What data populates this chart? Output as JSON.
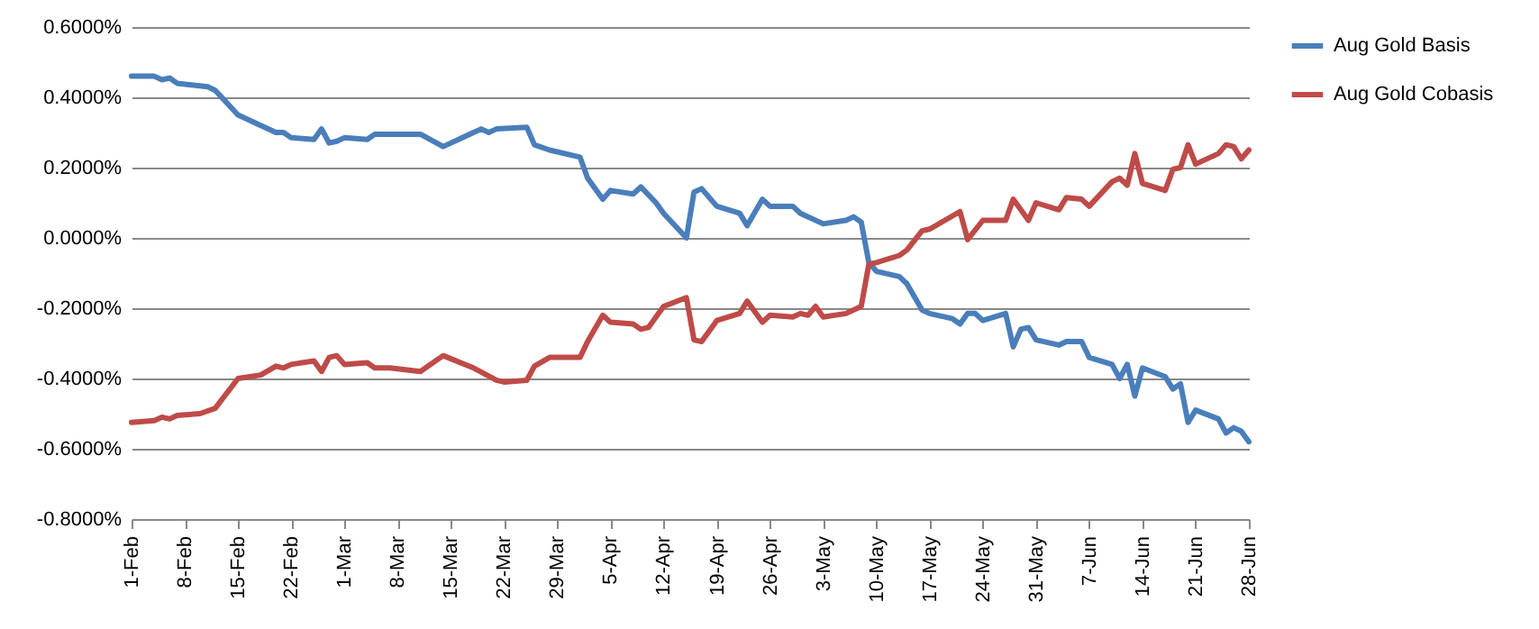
{
  "chart_data": {
    "type": "line",
    "legend": "right",
    "grid": "y",
    "line_style": "solid",
    "xlim": [
      "--02-01",
      "--06-28"
    ],
    "xticks": [
      {
        "value": "--02-01",
        "label": "1-Feb"
      },
      {
        "value": "--02-08",
        "label": "8-Feb"
      },
      {
        "value": "--02-15",
        "label": "15-Feb"
      },
      {
        "value": "--02-22",
        "label": "22-Feb"
      },
      {
        "value": "--03-01",
        "label": "1-Mar"
      },
      {
        "value": "--03-08",
        "label": "8-Mar"
      },
      {
        "value": "--03-15",
        "label": "15-Mar"
      },
      {
        "value": "--03-22",
        "label": "22-Mar"
      },
      {
        "value": "--03-29",
        "label": "29-Mar"
      },
      {
        "value": "--04-05",
        "label": "5-Apr"
      },
      {
        "value": "--04-12",
        "label": "12-Apr"
      },
      {
        "value": "--04-19",
        "label": "19-Apr"
      },
      {
        "value": "--04-26",
        "label": "26-Apr"
      },
      {
        "value": "--05-03",
        "label": "3-May"
      },
      {
        "value": "--05-10",
        "label": "10-May"
      },
      {
        "value": "--05-17",
        "label": "17-May"
      },
      {
        "value": "--05-24",
        "label": "24-May"
      },
      {
        "value": "--05-31",
        "label": "31-May"
      },
      {
        "value": "--06-07",
        "label": "7-Jun"
      },
      {
        "value": "--06-14",
        "label": "14-Jun"
      },
      {
        "value": "--06-21",
        "label": "21-Jun"
      },
      {
        "value": "--06-28",
        "label": "28-Jun"
      }
    ],
    "ylim": [
      -0.8,
      0.6
    ],
    "yticks": [
      {
        "value": -0.8,
        "label": "-0.8000%"
      },
      {
        "value": -0.6,
        "label": "-0.6000%"
      },
      {
        "value": -0.4,
        "label": "-0.4000%"
      },
      {
        "value": -0.2,
        "label": "-0.2000%"
      },
      {
        "value": 0,
        "label": "0.0000%"
      },
      {
        "value": 0.2,
        "label": "0.2000%"
      },
      {
        "value": 0.4,
        "label": "0.4000%"
      },
      {
        "value": 0.6,
        "label": "0.6000%"
      }
    ],
    "series": [
      {
        "name": "Aug Gold  Basis",
        "color": "#4a7ebb",
        "x": [
          "--02-01",
          "--02-04",
          "--02-05",
          "--02-06",
          "--02-07",
          "--02-11",
          "--02-12",
          "--02-15",
          "--02-18",
          "--02-20",
          "--02-21",
          "--02-22",
          "--02-25",
          "--02-26",
          "--02-27",
          "--02-28",
          "--03-01",
          "--03-04",
          "--03-05",
          "--03-11",
          "--03-14",
          "--03-18",
          "--03-19",
          "--03-20",
          "--03-21",
          "--03-25",
          "--03-26",
          "--03-28",
          "--04-01",
          "--04-02",
          "--04-04",
          "--04-05",
          "--04-08",
          "--04-09",
          "--04-11",
          "--04-12",
          "--04-15",
          "--04-16",
          "--04-17",
          "--04-19",
          "--04-22",
          "--04-23",
          "--04-25",
          "--04-26",
          "--04-29",
          "--04-30",
          "--05-03",
          "--05-06",
          "--05-07",
          "--05-08",
          "--05-09",
          "--05-10",
          "--05-13",
          "--05-14",
          "--05-16",
          "--05-17",
          "--05-20",
          "--05-21",
          "--05-22",
          "--05-23",
          "--05-24",
          "--05-27",
          "--05-28",
          "--05-29",
          "--05-30",
          "--05-31",
          "--06-03",
          "--06-04",
          "--06-06",
          "--06-07",
          "--06-10",
          "--06-11",
          "--06-12",
          "--06-13",
          "--06-14",
          "--06-17",
          "--06-18",
          "--06-19",
          "--06-20",
          "--06-21",
          "--06-24",
          "--06-25",
          "--06-26",
          "--06-27",
          "--06-28"
        ],
        "values": [
          0.46,
          0.46,
          0.45,
          0.455,
          0.44,
          0.43,
          0.42,
          0.35,
          0.32,
          0.3,
          0.3,
          0.285,
          0.28,
          0.31,
          0.27,
          0.275,
          0.285,
          0.28,
          0.295,
          0.295,
          0.26,
          0.3,
          0.31,
          0.3,
          0.31,
          0.315,
          0.265,
          0.25,
          0.23,
          0.17,
          0.11,
          0.135,
          0.125,
          0.145,
          0.1,
          0.07,
          0.0,
          0.13,
          0.14,
          0.09,
          0.07,
          0.035,
          0.11,
          0.09,
          0.09,
          0.07,
          0.04,
          0.05,
          0.06,
          0.045,
          -0.07,
          -0.095,
          -0.11,
          -0.13,
          -0.205,
          -0.215,
          -0.23,
          -0.245,
          -0.215,
          -0.215,
          -0.235,
          -0.215,
          -0.31,
          -0.26,
          -0.255,
          -0.29,
          -0.305,
          -0.295,
          -0.295,
          -0.34,
          -0.36,
          -0.4,
          -0.36,
          -0.45,
          -0.37,
          -0.395,
          -0.43,
          -0.415,
          -0.525,
          -0.49,
          -0.515,
          -0.555,
          -0.54,
          -0.55,
          -0.58
        ]
      },
      {
        "name": "Aug Gold  Cobasis",
        "color": "#be4b48",
        "x": [
          "--02-01",
          "--02-04",
          "--02-05",
          "--02-06",
          "--02-07",
          "--02-10",
          "--02-12",
          "--02-15",
          "--02-18",
          "--02-20",
          "--02-21",
          "--02-22",
          "--02-25",
          "--02-26",
          "--02-27",
          "--02-28",
          "--03-01",
          "--03-04",
          "--03-05",
          "--03-07",
          "--03-11",
          "--03-14",
          "--03-18",
          "--03-21",
          "--03-22",
          "--03-25",
          "--03-26",
          "--03-28",
          "--04-01",
          "--04-02",
          "--04-04",
          "--04-05",
          "--04-08",
          "--04-09",
          "--04-10",
          "--04-12",
          "--04-15",
          "--04-16",
          "--04-17",
          "--04-19",
          "--04-22",
          "--04-23",
          "--04-25",
          "--04-26",
          "--04-29",
          "--04-30",
          "--05-01",
          "--05-02",
          "--05-03",
          "--05-06",
          "--05-08",
          "--05-09",
          "--05-10",
          "--05-13",
          "--05-14",
          "--05-16",
          "--05-17",
          "--05-21",
          "--05-22",
          "--05-24",
          "--05-27",
          "--05-28",
          "--05-30",
          "--05-31",
          "--06-03",
          "--06-04",
          "--06-06",
          "--06-07",
          "--06-10",
          "--06-11",
          "--06-12",
          "--06-13",
          "--06-14",
          "--06-17",
          "--06-18",
          "--06-19",
          "--06-20",
          "--06-21",
          "--06-24",
          "--06-25",
          "--06-26",
          "--06-27",
          "--06-28"
        ],
        "values": [
          -0.525,
          -0.52,
          -0.51,
          -0.515,
          -0.505,
          -0.5,
          -0.485,
          -0.4,
          -0.39,
          -0.365,
          -0.37,
          -0.36,
          -0.35,
          -0.38,
          -0.34,
          -0.335,
          -0.36,
          -0.355,
          -0.37,
          -0.37,
          -0.38,
          -0.335,
          -0.37,
          -0.405,
          -0.41,
          -0.405,
          -0.365,
          -0.34,
          -0.34,
          -0.295,
          -0.22,
          -0.24,
          -0.245,
          -0.26,
          -0.255,
          -0.195,
          -0.17,
          -0.29,
          -0.295,
          -0.235,
          -0.215,
          -0.18,
          -0.24,
          -0.22,
          -0.225,
          -0.215,
          -0.22,
          -0.195,
          -0.225,
          -0.215,
          -0.195,
          -0.075,
          -0.07,
          -0.05,
          -0.035,
          0.02,
          0.025,
          0.075,
          -0.005,
          0.05,
          0.05,
          0.11,
          0.05,
          0.1,
          0.08,
          0.115,
          0.11,
          0.09,
          0.16,
          0.17,
          0.15,
          0.24,
          0.155,
          0.135,
          0.195,
          0.2,
          0.265,
          0.21,
          0.24,
          0.265,
          0.26,
          0.225,
          0.25
        ]
      }
    ]
  }
}
